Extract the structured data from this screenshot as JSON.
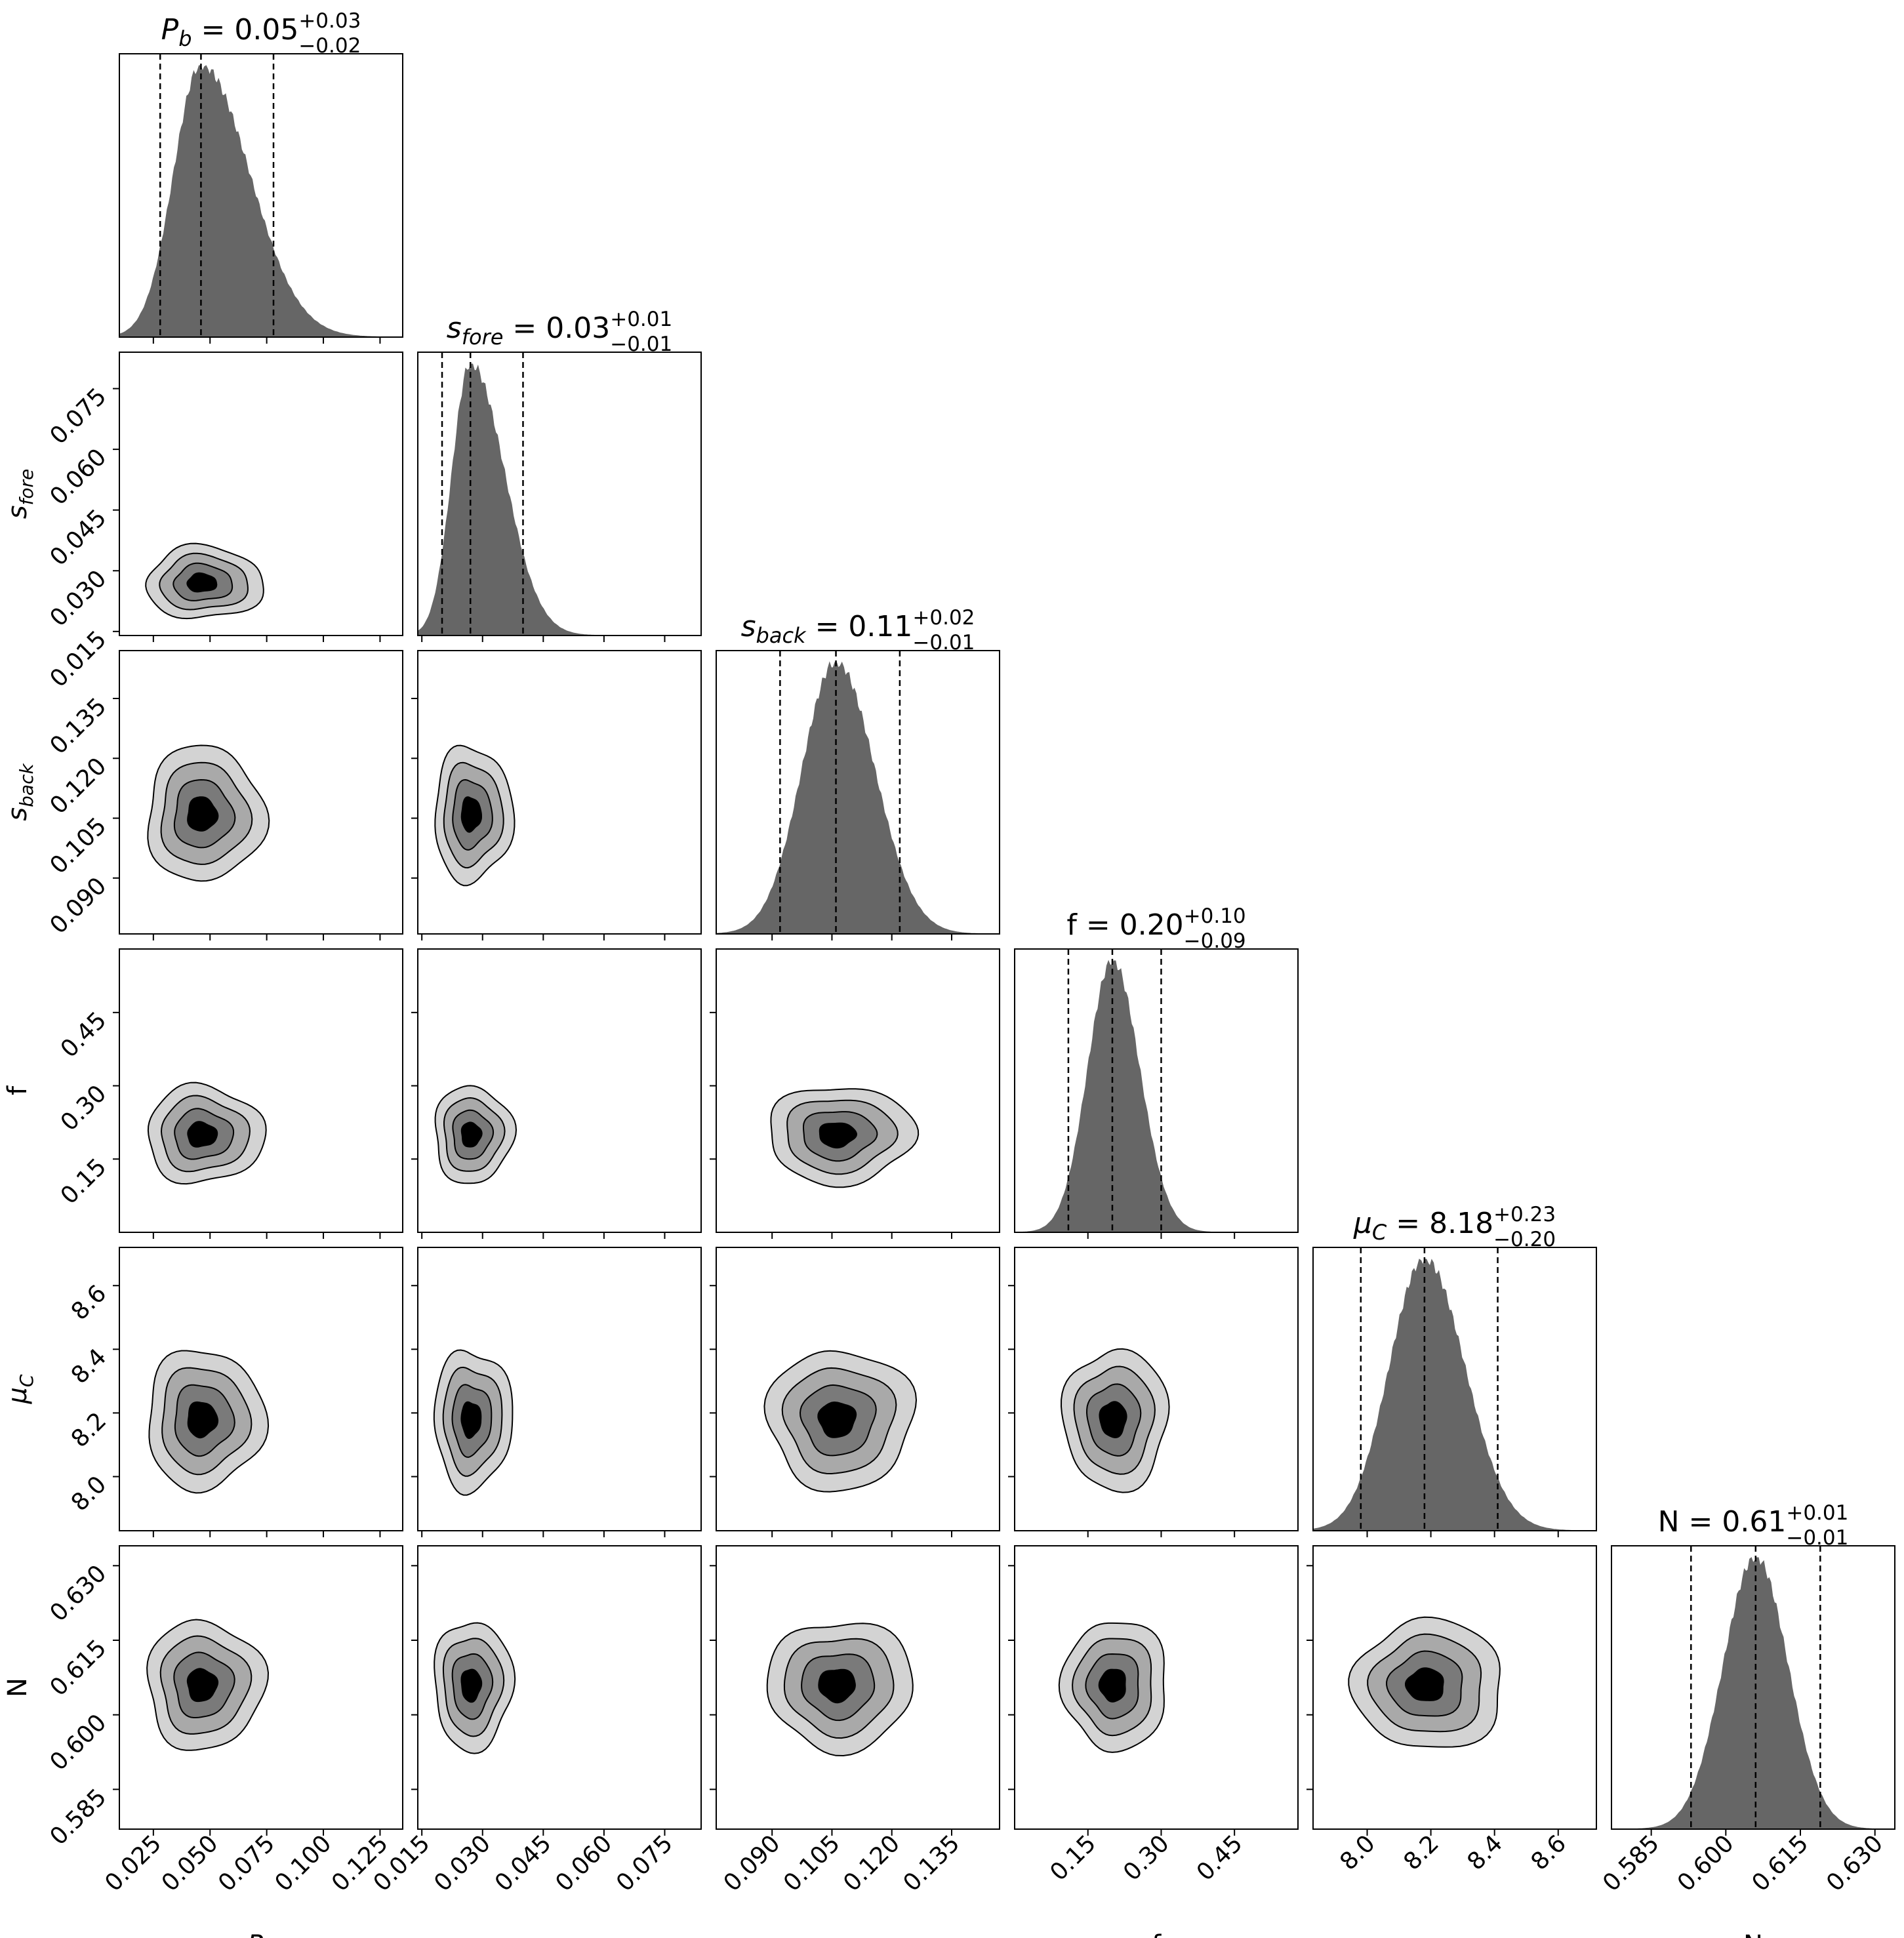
{
  "figure": "corner plot",
  "colors": {
    "hist": "#666666",
    "contour_1": "#d3d3d3",
    "contour_2": "#a9a9a9",
    "contour_3": "#7a7a7a",
    "contour_4": "#000000",
    "frame": "#000000"
  },
  "chart_data": {
    "type": "corner",
    "parameters": [
      {
        "id": "Pb",
        "label_main": "P",
        "label_sub": "b",
        "italic": true,
        "median": 0.046,
        "lo": 0.028,
        "hi": 0.078,
        "sd": 0.012,
        "range": [
          0.01,
          0.135
        ],
        "ticks": [
          0.025,
          0.05,
          0.075,
          0.1,
          0.125
        ],
        "tick_labels": [
          "0.025",
          "0.050",
          "0.075",
          "0.100",
          "0.125"
        ],
        "title_value": "0.05",
        "title_plus": "+0.03",
        "title_minus": "−0.02"
      },
      {
        "id": "sfore",
        "label_main": "s",
        "label_sub": "fore",
        "italic": true,
        "median": 0.027,
        "lo": 0.02,
        "hi": 0.04,
        "sd": 0.0045,
        "range": [
          0.014,
          0.084
        ],
        "ticks": [
          0.015,
          0.03,
          0.045,
          0.06,
          0.075
        ],
        "tick_labels": [
          "0.015",
          "0.030",
          "0.045",
          "0.060",
          "0.075"
        ],
        "title_value": "0.03",
        "title_plus": "+0.01",
        "title_minus": "−0.01"
      },
      {
        "id": "sback",
        "label_main": "s",
        "label_sub": "back",
        "italic": true,
        "median": 0.106,
        "lo": 0.092,
        "hi": 0.122,
        "sd": 0.0085,
        "range": [
          0.076,
          0.147
        ],
        "ticks": [
          0.09,
          0.105,
          0.12,
          0.135
        ],
        "tick_labels": [
          "0.090",
          "0.105",
          "0.120",
          "0.135"
        ],
        "title_value": "0.11",
        "title_plus": "+0.02",
        "title_minus": "−0.01"
      },
      {
        "id": "f",
        "label_main": "f",
        "label_sub": "",
        "italic": false,
        "median": 0.2,
        "lo": 0.11,
        "hi": 0.3,
        "sd": 0.05,
        "range": [
          0.0,
          0.58
        ],
        "ticks": [
          0.15,
          0.3,
          0.45
        ],
        "tick_labels": [
          "0.15",
          "0.30",
          "0.45"
        ],
        "title_value": "0.20",
        "title_plus": "+0.10",
        "title_minus": "−0.09"
      },
      {
        "id": "muC",
        "label_main": "μ",
        "label_sub": "C",
        "italic": true,
        "median": 8.18,
        "lo": 7.98,
        "hi": 8.41,
        "sd": 0.11,
        "range": [
          7.83,
          8.72
        ],
        "ticks": [
          8.0,
          8.2,
          8.4,
          8.6
        ],
        "tick_labels": [
          "8.0",
          "8.2",
          "8.4",
          "8.6"
        ],
        "title_value": "8.18",
        "title_plus": "+0.23",
        "title_minus": "−0.20"
      },
      {
        "id": "N",
        "label_main": "N",
        "label_sub": "",
        "italic": false,
        "median": 0.606,
        "lo": 0.593,
        "hi": 0.619,
        "sd": 0.0065,
        "range": [
          0.577,
          0.634
        ],
        "ticks": [
          0.585,
          0.6,
          0.615,
          0.63
        ],
        "tick_labels": [
          "0.585",
          "0.600",
          "0.615",
          "0.630"
        ],
        "title_value": "0.61",
        "title_plus": "+0.01",
        "title_minus": "−0.01"
      }
    ],
    "contour_levels_sigma": [
      0.5,
      1.0,
      1.5,
      2.0
    ]
  }
}
